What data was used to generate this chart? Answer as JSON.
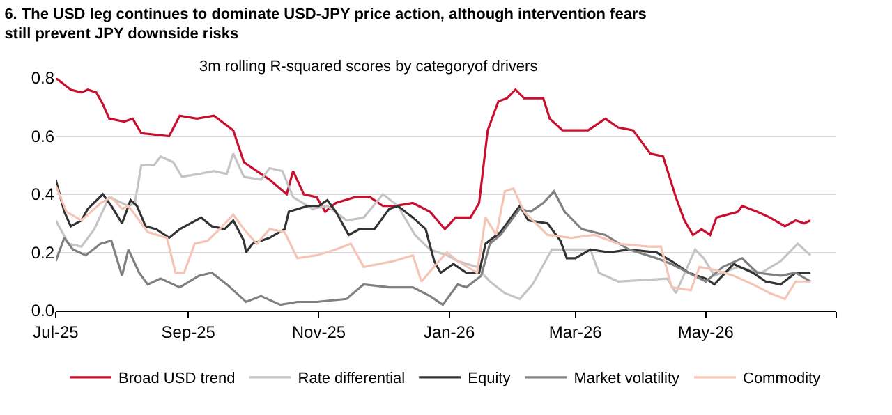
{
  "chart_data": {
    "type": "line",
    "title": "6. The USD leg continues to dominate USD-JPY price action, although intervention fears still prevent JPY downside risks",
    "annotations": [
      "3m rolling R-squared scores by categoryof drivers"
    ],
    "xlim": [
      "2025-07-01",
      "2026-07-01"
    ],
    "xticks": [
      {
        "value": "2025-07-01",
        "label": "Jul-25"
      },
      {
        "value": "2025-09-01",
        "label": "Sep-25"
      },
      {
        "value": "2025-11-01",
        "label": "Nov-25"
      },
      {
        "value": "2026-01-01",
        "label": "Jan-26"
      },
      {
        "value": "2026-03-01",
        "label": "Mar-26"
      },
      {
        "value": "2026-05-01",
        "label": "May-26"
      },
      {
        "value": "2026-07-01",
        "label": null
      }
    ],
    "ylim": [
      0,
      0.8
    ],
    "yticks": [
      {
        "value": 0,
        "label": "0.0"
      },
      {
        "value": 0.2,
        "label": "0.2"
      },
      {
        "value": 0.4,
        "label": "0.4"
      },
      {
        "value": 0.6,
        "label": "0.6"
      },
      {
        "value": 0.8,
        "label": "0.8"
      }
    ],
    "grid": "y",
    "legend": "bottom",
    "marker": "none",
    "line_style": "solid",
    "series": [
      {
        "name": "Broad USD trend",
        "color": "#c8102e",
        "x": [
          "2025-07-01",
          "2025-07-08",
          "2025-07-13",
          "2025-07-16",
          "2025-07-20",
          "2025-07-23",
          "2025-07-26",
          "2025-08-02",
          "2025-08-06",
          "2025-08-10",
          "2025-08-23",
          "2025-08-28",
          "2025-09-05",
          "2025-09-13",
          "2025-09-22",
          "2025-09-27",
          "2025-10-03",
          "2025-10-09",
          "2025-10-17",
          "2025-10-20",
          "2025-10-25",
          "2025-10-31",
          "2025-11-04",
          "2025-11-09",
          "2025-11-18",
          "2025-11-25",
          "2025-12-01",
          "2025-12-07",
          "2025-12-15",
          "2025-12-23",
          "2025-12-30",
          "2026-01-04",
          "2026-01-11",
          "2026-01-15",
          "2026-01-19",
          "2026-01-24",
          "2026-01-28",
          "2026-02-01",
          "2026-02-05",
          "2026-02-14",
          "2026-02-17",
          "2026-02-23",
          "2026-03-01",
          "2026-03-07",
          "2026-03-15",
          "2026-03-21",
          "2026-03-28",
          "2026-04-05",
          "2026-04-11",
          "2026-04-17",
          "2026-04-21",
          "2026-04-25",
          "2026-04-29",
          "2026-05-03",
          "2026-05-06",
          "2026-05-16",
          "2026-05-18",
          "2026-05-25",
          "2026-05-31",
          "2026-06-07",
          "2026-06-12",
          "2026-06-16",
          "2026-06-19"
        ],
        "values": [
          0.8,
          0.76,
          0.75,
          0.76,
          0.75,
          0.71,
          0.66,
          0.65,
          0.66,
          0.61,
          0.6,
          0.67,
          0.66,
          0.67,
          0.62,
          0.51,
          0.48,
          0.45,
          0.4,
          0.48,
          0.4,
          0.39,
          0.34,
          0.37,
          0.39,
          0.39,
          0.36,
          0.36,
          0.37,
          0.34,
          0.28,
          0.32,
          0.32,
          0.37,
          0.62,
          0.72,
          0.73,
          0.76,
          0.73,
          0.73,
          0.66,
          0.62,
          0.62,
          0.62,
          0.66,
          0.63,
          0.62,
          0.54,
          0.53,
          0.39,
          0.31,
          0.26,
          0.28,
          0.26,
          0.32,
          0.34,
          0.36,
          0.34,
          0.32,
          0.29,
          0.31,
          0.3,
          0.31
        ]
      },
      {
        "name": "Rate differential",
        "color": "#c4c4c4",
        "x": [
          "2025-07-01",
          "2025-07-07",
          "2025-07-13",
          "2025-07-19",
          "2025-07-26",
          "2025-08-04",
          "2025-08-07",
          "2025-08-10",
          "2025-08-16",
          "2025-08-19",
          "2025-08-25",
          "2025-08-29",
          "2025-09-06",
          "2025-09-13",
          "2025-09-19",
          "2025-09-22",
          "2025-09-27",
          "2025-10-05",
          "2025-10-09",
          "2025-10-15",
          "2025-10-20",
          "2025-10-29",
          "2025-11-05",
          "2025-11-14",
          "2025-11-22",
          "2025-12-01",
          "2025-12-08",
          "2025-12-16",
          "2025-12-23",
          "2025-12-31",
          "2026-01-05",
          "2026-01-14",
          "2026-01-20",
          "2026-01-27",
          "2026-02-03",
          "2026-02-09",
          "2026-02-18",
          "2026-03-08",
          "2026-03-12",
          "2026-03-21",
          "2026-04-13",
          "2026-04-17",
          "2026-04-26",
          "2026-04-30",
          "2026-05-05",
          "2026-05-16",
          "2026-05-27",
          "2026-06-05",
          "2026-06-13",
          "2026-06-16",
          "2026-06-19"
        ],
        "values": [
          0.31,
          0.23,
          0.22,
          0.28,
          0.39,
          0.36,
          0.37,
          0.5,
          0.5,
          0.53,
          0.51,
          0.46,
          0.47,
          0.48,
          0.47,
          0.54,
          0.46,
          0.45,
          0.49,
          0.48,
          0.39,
          0.35,
          0.36,
          0.31,
          0.32,
          0.4,
          0.36,
          0.26,
          0.21,
          0.19,
          0.17,
          0.15,
          0.1,
          0.06,
          0.04,
          0.09,
          0.21,
          0.21,
          0.13,
          0.1,
          0.11,
          0.06,
          0.21,
          0.18,
          0.12,
          0.15,
          0.13,
          0.17,
          0.23,
          0.21,
          0.19
        ]
      },
      {
        "name": "Equity",
        "color": "#333333",
        "x": [
          "2025-07-01",
          "2025-07-05",
          "2025-07-08",
          "2025-07-13",
          "2025-07-16",
          "2025-07-23",
          "2025-07-27",
          "2025-08-01",
          "2025-08-05",
          "2025-08-08",
          "2025-08-12",
          "2025-08-17",
          "2025-08-23",
          "2025-08-28",
          "2025-09-07",
          "2025-09-12",
          "2025-09-18",
          "2025-09-22",
          "2025-09-27",
          "2025-09-28",
          "2025-10-01",
          "2025-10-09",
          "2025-10-16",
          "2025-10-18",
          "2025-10-27",
          "2025-11-01",
          "2025-11-05",
          "2025-11-09",
          "2025-11-15",
          "2025-11-20",
          "2025-11-27",
          "2025-12-04",
          "2025-12-08",
          "2025-12-15",
          "2025-12-21",
          "2025-12-25",
          "2025-12-28",
          "2026-01-03",
          "2026-01-09",
          "2026-01-15",
          "2026-01-18",
          "2026-01-25",
          "2026-02-03",
          "2026-02-07",
          "2026-02-16",
          "2026-02-22",
          "2026-02-25",
          "2026-03-01",
          "2026-03-08",
          "2026-03-17",
          "2026-03-26",
          "2026-04-08",
          "2026-04-15",
          "2026-04-23",
          "2026-05-01",
          "2026-05-05",
          "2026-05-14",
          "2026-05-23",
          "2026-05-29",
          "2026-06-05",
          "2026-06-12",
          "2026-06-19"
        ],
        "values": [
          0.45,
          0.34,
          0.29,
          0.31,
          0.35,
          0.4,
          0.36,
          0.3,
          0.38,
          0.36,
          0.29,
          0.28,
          0.25,
          0.28,
          0.32,
          0.29,
          0.28,
          0.31,
          0.24,
          0.2,
          0.23,
          0.25,
          0.28,
          0.34,
          0.36,
          0.36,
          0.38,
          0.34,
          0.26,
          0.28,
          0.28,
          0.35,
          0.36,
          0.32,
          0.28,
          0.17,
          0.13,
          0.16,
          0.13,
          0.13,
          0.23,
          0.27,
          0.36,
          0.31,
          0.3,
          0.24,
          0.18,
          0.18,
          0.21,
          0.2,
          0.21,
          0.2,
          0.17,
          0.13,
          0.11,
          0.09,
          0.16,
          0.13,
          0.1,
          0.09,
          0.13,
          0.13
        ]
      },
      {
        "name": "Market volatility",
        "color": "#808080",
        "x": [
          "2025-07-01",
          "2025-07-05",
          "2025-07-09",
          "2025-07-15",
          "2025-07-22",
          "2025-07-27",
          "2025-08-01",
          "2025-08-04",
          "2025-08-09",
          "2025-08-13",
          "2025-08-19",
          "2025-08-28",
          "2025-09-06",
          "2025-09-12",
          "2025-09-19",
          "2025-09-28",
          "2025-10-05",
          "2025-10-14",
          "2025-10-22",
          "2025-10-31",
          "2025-11-14",
          "2025-11-22",
          "2025-12-04",
          "2025-12-15",
          "2025-12-23",
          "2025-12-29",
          "2026-01-02",
          "2026-01-05",
          "2026-01-09",
          "2026-01-16",
          "2026-01-20",
          "2026-01-25",
          "2026-02-03",
          "2026-02-08",
          "2026-02-14",
          "2026-02-19",
          "2026-02-24",
          "2026-03-04",
          "2026-03-15",
          "2026-03-26",
          "2026-04-08",
          "2026-04-15",
          "2026-04-23",
          "2026-05-01",
          "2026-05-09",
          "2026-05-18",
          "2026-05-25",
          "2026-06-05",
          "2026-06-12",
          "2026-06-19"
        ],
        "values": [
          0.17,
          0.25,
          0.21,
          0.19,
          0.23,
          0.24,
          0.12,
          0.21,
          0.13,
          0.09,
          0.11,
          0.08,
          0.12,
          0.13,
          0.09,
          0.03,
          0.05,
          0.02,
          0.03,
          0.03,
          0.04,
          0.09,
          0.08,
          0.08,
          0.05,
          0.02,
          0.06,
          0.09,
          0.08,
          0.12,
          0.23,
          0.26,
          0.35,
          0.34,
          0.37,
          0.41,
          0.34,
          0.28,
          0.26,
          0.21,
          0.18,
          0.16,
          0.13,
          0.1,
          0.15,
          0.18,
          0.13,
          0.12,
          0.13,
          0.1
        ]
      },
      {
        "name": "Commodity",
        "color": "#f4c4b4",
        "x": [
          "2025-07-01",
          "2025-07-06",
          "2025-07-13",
          "2025-07-22",
          "2025-07-27",
          "2025-08-01",
          "2025-08-04",
          "2025-08-08",
          "2025-08-13",
          "2025-08-22",
          "2025-08-26",
          "2025-08-30",
          "2025-09-04",
          "2025-09-10",
          "2025-09-17",
          "2025-09-22",
          "2025-09-27",
          "2025-10-03",
          "2025-10-09",
          "2025-10-16",
          "2025-10-22",
          "2025-10-31",
          "2025-11-09",
          "2025-11-16",
          "2025-11-22",
          "2025-12-06",
          "2025-12-15",
          "2025-12-19",
          "2025-12-26",
          "2025-12-31",
          "2026-01-05",
          "2026-01-14",
          "2026-01-18",
          "2026-01-23",
          "2026-01-27",
          "2026-01-31",
          "2026-02-05",
          "2026-02-16",
          "2026-02-27",
          "2026-03-10",
          "2026-03-21",
          "2026-04-04",
          "2026-04-10",
          "2026-04-15",
          "2026-04-24",
          "2026-04-28",
          "2026-05-05",
          "2026-05-14",
          "2026-05-23",
          "2026-05-31",
          "2026-06-07",
          "2026-06-12",
          "2026-06-19"
        ],
        "values": [
          0.43,
          0.34,
          0.31,
          0.37,
          0.39,
          0.35,
          0.36,
          0.32,
          0.27,
          0.25,
          0.13,
          0.13,
          0.23,
          0.24,
          0.29,
          0.33,
          0.28,
          0.23,
          0.28,
          0.27,
          0.18,
          0.19,
          0.21,
          0.23,
          0.15,
          0.17,
          0.19,
          0.1,
          0.16,
          0.2,
          0.17,
          0.13,
          0.32,
          0.26,
          0.41,
          0.42,
          0.34,
          0.26,
          0.25,
          0.26,
          0.23,
          0.22,
          0.22,
          0.08,
          0.07,
          0.15,
          0.14,
          0.12,
          0.09,
          0.06,
          0.04,
          0.1,
          0.1
        ]
      }
    ]
  }
}
